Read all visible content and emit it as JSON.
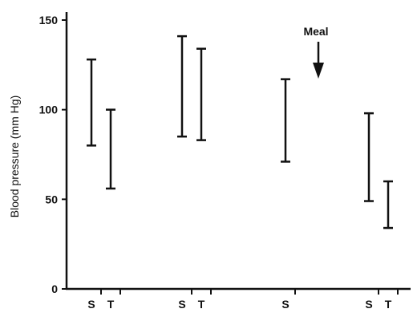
{
  "chart_data": {
    "type": "range",
    "title": "",
    "xlabel": "",
    "ylabel": "Blood pressure (mm Hg)",
    "ylim": [
      0,
      150
    ],
    "yticks": [
      0,
      50,
      100,
      150
    ],
    "ytick_labels": [
      "0",
      "50",
      "100",
      "150"
    ],
    "grid": false,
    "legend": "none",
    "bar_color": "#111111",
    "ranges": [
      {
        "label": "S",
        "low": 80,
        "high": 128
      },
      {
        "label": "T",
        "low": 56,
        "high": 100
      },
      {
        "label": "S",
        "low": 85,
        "high": 141
      },
      {
        "label": "T",
        "low": 83,
        "high": 134
      },
      {
        "label": "S",
        "low": 71,
        "high": 117
      },
      {
        "label": "S",
        "low": 49,
        "high": 98
      },
      {
        "label": "T",
        "low": 34,
        "high": 60
      }
    ],
    "annotation": {
      "text": "Meal",
      "arrow": "down"
    }
  }
}
